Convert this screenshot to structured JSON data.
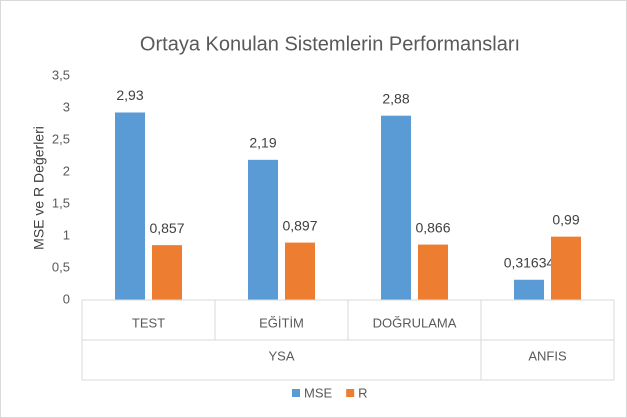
{
  "chart_data": {
    "type": "bar",
    "title": "Ortaya Konulan Sistemlerin Performansları",
    "y_label": "MSE ve R Değerleri",
    "categories": [
      "TEST",
      "EĞİTİM",
      "DOĞRULAMA",
      null
    ],
    "category_groups": [
      "YSA",
      "YSA",
      "YSA",
      "ANFIS"
    ],
    "series": [
      {
        "name": "MSE",
        "color": "#5b9bd5",
        "values": [
          2.93,
          2.19,
          2.88,
          0.31634
        ],
        "value_labels": [
          "2,93",
          "2,19",
          "2,88",
          "0,31634"
        ]
      },
      {
        "name": "R",
        "color": "#ed7d31",
        "values": [
          0.857,
          0.897,
          0.866,
          0.99
        ],
        "value_labels": [
          "0,857",
          "0,897",
          "0,866",
          "0,99"
        ]
      }
    ],
    "ylim": [
      0,
      3.5
    ],
    "yticks": [
      0,
      {
        "value": 0.5,
        "label": "0,5"
      },
      1,
      {
        "value": 1.5,
        "label": "1,5"
      },
      2,
      {
        "value": 2.5,
        "label": "2,5"
      },
      3,
      {
        "value": 3.5,
        "label": "3,5"
      }
    ],
    "grid": false,
    "legend": "bottom"
  }
}
